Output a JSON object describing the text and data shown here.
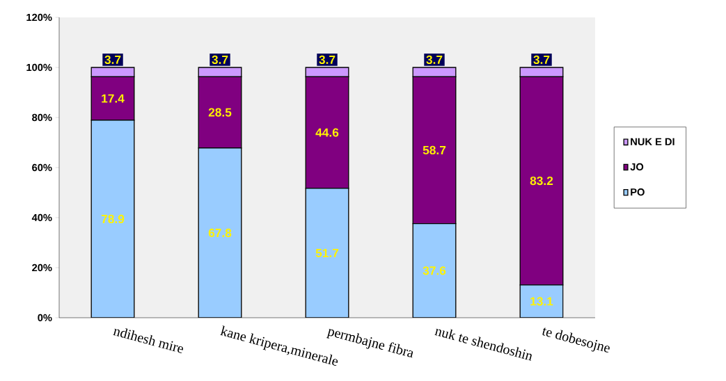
{
  "chart_data": {
    "type": "bar",
    "stacked": true,
    "categories": [
      "ndihesh mire",
      "kane kripera,minerale",
      "permbajne fibra",
      "nuk te shendoshin",
      "te dobesojne"
    ],
    "series": [
      {
        "name": "PO",
        "color": "#99ccff",
        "values": [
          78.9,
          67.8,
          51.7,
          37.6,
          13.1
        ]
      },
      {
        "name": "JO",
        "color": "#800080",
        "values": [
          17.4,
          28.5,
          44.6,
          58.7,
          83.2
        ]
      },
      {
        "name": "NUK E DI",
        "color": "#cc99ff",
        "values": [
          3.7,
          3.7,
          3.7,
          3.7,
          3.7
        ]
      }
    ],
    "ylim": [
      0,
      120
    ],
    "yticks": [
      {
        "value": 0,
        "label": "0%"
      },
      {
        "value": 20,
        "label": "20%"
      },
      {
        "value": 40,
        "label": "40%"
      },
      {
        "value": 60,
        "label": "60%"
      },
      {
        "value": 80,
        "label": "80%"
      },
      {
        "value": 100,
        "label": "100%"
      },
      {
        "value": 120,
        "label": "120%"
      }
    ],
    "data_labels": true,
    "legend": "right",
    "grid": false
  }
}
